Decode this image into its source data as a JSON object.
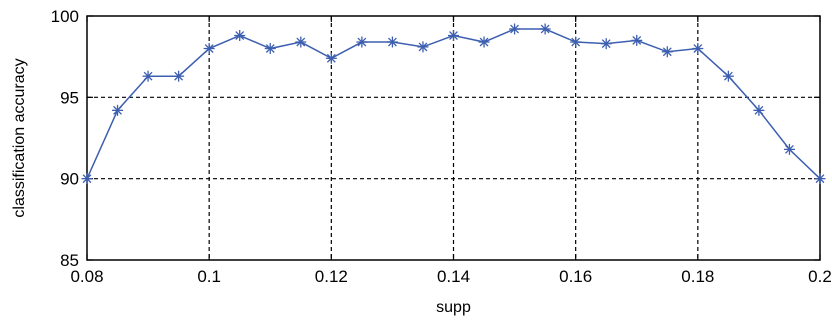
{
  "chart_data": {
    "type": "line",
    "title": "",
    "xlabel": "supp",
    "ylabel": "classification accuracy",
    "xlim": [
      0.08,
      0.2
    ],
    "ylim": [
      85,
      100
    ],
    "xticks": [
      0.08,
      0.1,
      0.12,
      0.14,
      0.16,
      0.18,
      0.2
    ],
    "xtick_labels": [
      "0.08",
      "0.1",
      "0.12",
      "0.14",
      "0.16",
      "0.18",
      "0.2"
    ],
    "yticks": [
      85,
      90,
      95,
      100
    ],
    "ytick_labels": [
      "85",
      "90",
      "95",
      "100"
    ],
    "grid": true,
    "marker": "asterisk",
    "line_color": "#3d5fb0",
    "series": [
      {
        "x": [
          0.08,
          0.085,
          0.09,
          0.095,
          0.1,
          0.105,
          0.11,
          0.115,
          0.12,
          0.125,
          0.13,
          0.135,
          0.14,
          0.145,
          0.15,
          0.155,
          0.16,
          0.165,
          0.17,
          0.175,
          0.18,
          0.185,
          0.19,
          0.195,
          0.2
        ],
        "y": [
          90.0,
          94.2,
          96.3,
          96.3,
          98.0,
          98.8,
          98.0,
          98.4,
          97.4,
          98.4,
          98.4,
          98.1,
          98.8,
          98.4,
          99.2,
          99.2,
          98.4,
          98.3,
          98.5,
          97.8,
          98.0,
          96.3,
          94.2,
          91.8,
          90.0
        ]
      }
    ]
  }
}
